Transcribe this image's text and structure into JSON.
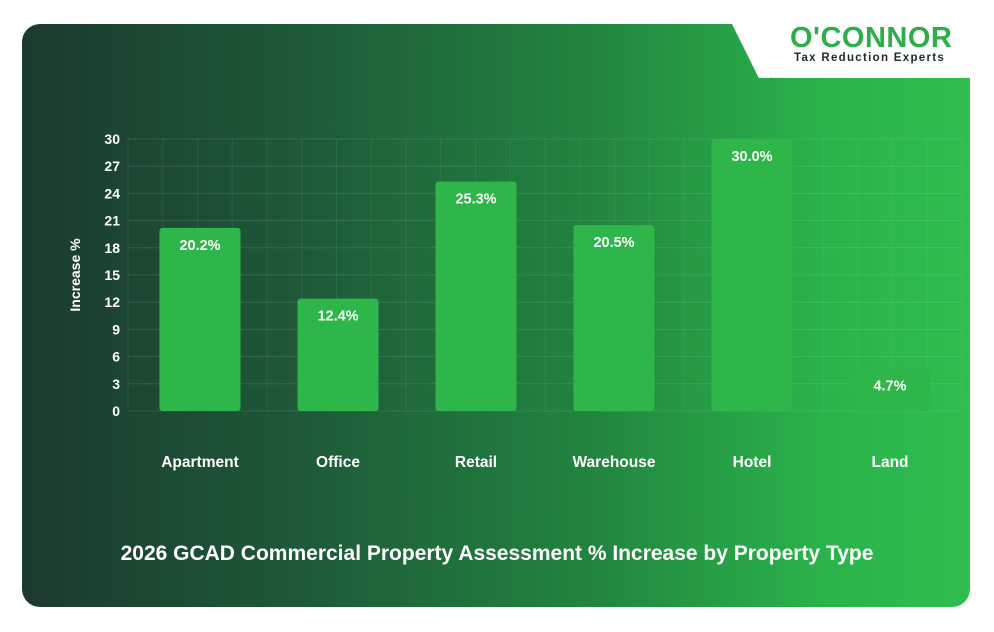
{
  "logo": {
    "name": "O'CONNOR",
    "tagline": "Tax Reduction Experts"
  },
  "caption": "2026 GCAD Commercial Property Assessment % Increase by Property Type",
  "chart_data": {
    "type": "bar",
    "title": "2026 GCAD Commercial Property Assessment % Increase by Property Type",
    "xlabel": "",
    "ylabel": "Increase %",
    "ylim": [
      0,
      30
    ],
    "yticks": [
      0,
      3,
      6,
      9,
      12,
      15,
      18,
      21,
      24,
      27,
      30
    ],
    "grid": true,
    "categories": [
      "Apartment",
      "Office",
      "Retail",
      "Warehouse",
      "Hotel",
      "Land"
    ],
    "values": [
      20.2,
      12.4,
      25.3,
      20.5,
      30.0,
      4.7
    ],
    "data_labels": [
      "20.2%",
      "12.4%",
      "25.3%",
      "20.5%",
      "30.0%",
      "4.7%"
    ]
  },
  "colors": {
    "bar": "#2fb64b",
    "text": "#ffffff",
    "brand_green": "#2eae4a"
  }
}
